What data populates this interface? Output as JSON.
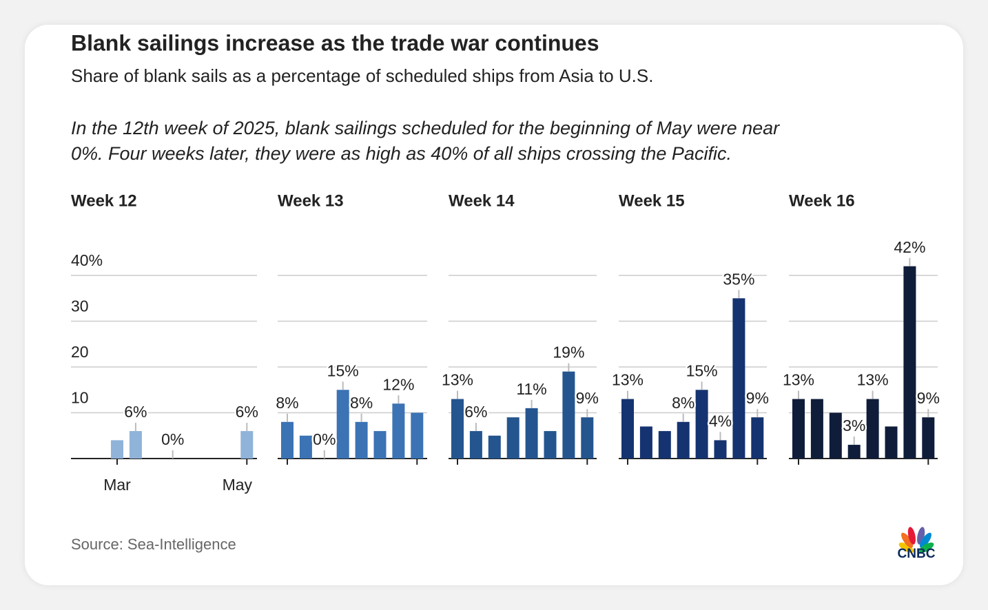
{
  "title": "Blank sailings increase as the trade war continues",
  "subtitle": "Share of blank sails as a percentage of scheduled ships from Asia to U.S.",
  "note": [
    "In the 12th week of 2025, blank sailings scheduled for the beginning of May were near",
    "0%. Four weeks later, they were as high as 40% of all ships crossing the Pacific."
  ],
  "source": "Source: Sea-Intelligence",
  "logo": "CNBC",
  "chart_data": [
    {
      "type": "bar",
      "title": "Week 12",
      "color": "#8fb3d9",
      "categories": [
        "Mar",
        null,
        null,
        null,
        null,
        null,
        null,
        "May"
      ],
      "values": [
        4,
        6,
        null,
        0,
        null,
        null,
        null,
        6
      ],
      "value_labels": [
        null,
        "6%",
        null,
        "0%",
        null,
        null,
        null,
        "6%"
      ],
      "ylim": [
        0,
        40
      ],
      "yticks": [
        10,
        20,
        30,
        {
          "value": 40,
          "label": "40%"
        }
      ],
      "grid": true
    },
    {
      "type": "bar",
      "title": "Week 13",
      "color": "#3b73b5",
      "values": [
        8,
        5,
        0,
        15,
        8,
        6,
        12,
        10
      ],
      "value_labels": [
        "8%",
        null,
        "0%",
        "15%",
        "8%",
        null,
        "12%",
        null
      ]
    },
    {
      "type": "bar",
      "title": "Week 14",
      "color": "#24558f",
      "values": [
        13,
        6,
        5,
        9,
        11,
        6,
        19,
        9
      ],
      "value_labels": [
        "13%",
        "6%",
        null,
        null,
        "11%",
        null,
        "19%",
        "9%"
      ]
    },
    {
      "type": "bar",
      "title": "Week 15",
      "color": "#153370",
      "values": [
        13,
        7,
        6,
        8,
        15,
        4,
        35,
        9
      ],
      "value_labels": [
        "13%",
        null,
        null,
        "8%",
        "15%",
        "4%",
        "35%",
        "9%"
      ]
    },
    {
      "type": "bar",
      "title": "Week 16",
      "color": "#0f1d3a",
      "values": [
        13,
        13,
        10,
        3,
        13,
        7,
        42,
        9
      ],
      "value_labels": [
        "13%",
        null,
        null,
        "3%",
        "13%",
        null,
        "42%",
        "9%"
      ]
    }
  ]
}
